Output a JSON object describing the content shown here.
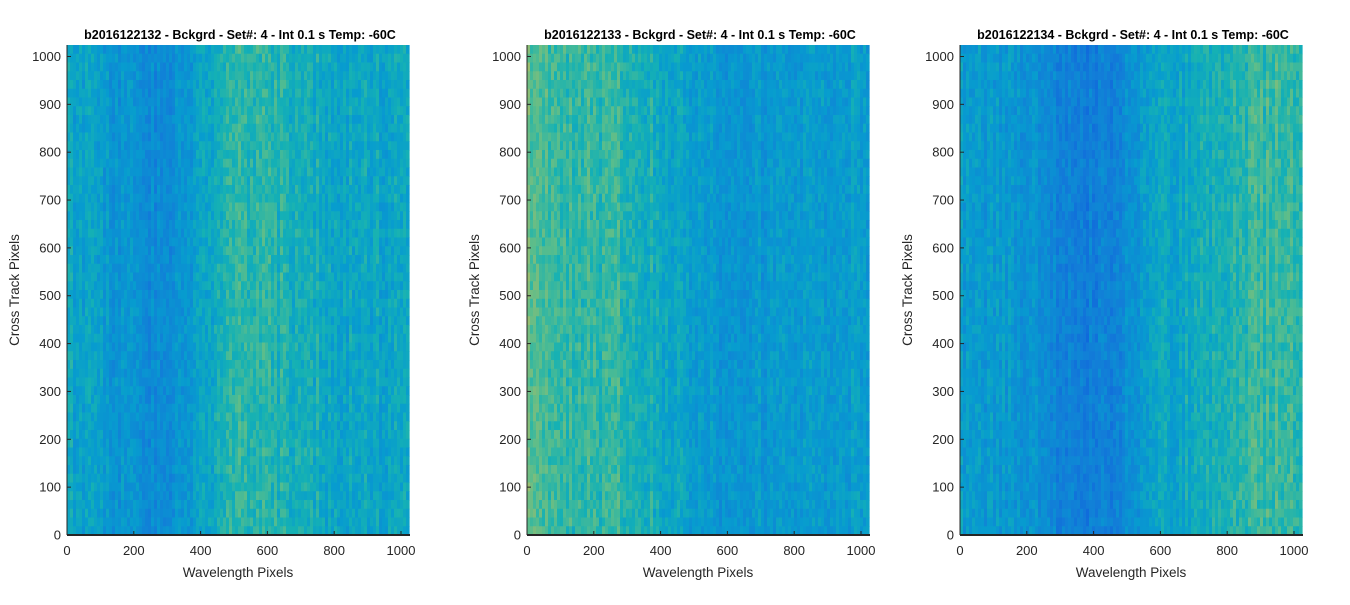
{
  "chart_data": [
    {
      "type": "heatmap",
      "title": "b2016122132 - Bckgrd - Set#: 4 - Int 0.1 s Temp: -60C",
      "xlabel": "Wavelength Pixels",
      "ylabel": "Cross Track Pixels",
      "xlim": [
        0,
        1024
      ],
      "ylim": [
        0,
        1024
      ],
      "xticks": [
        0,
        200,
        400,
        600,
        800,
        1000
      ],
      "yticks": [
        0,
        100,
        200,
        300,
        400,
        500,
        600,
        700,
        800,
        900,
        1000
      ],
      "colormap": "parula",
      "column_profile": [
        {
          "x": 0,
          "v": 0.5
        },
        {
          "x": 150,
          "v": 0.42
        },
        {
          "x": 280,
          "v": 0.36
        },
        {
          "x": 400,
          "v": 0.46
        },
        {
          "x": 500,
          "v": 0.58
        },
        {
          "x": 650,
          "v": 0.56
        },
        {
          "x": 800,
          "v": 0.5
        },
        {
          "x": 1024,
          "v": 0.48
        }
      ]
    },
    {
      "type": "heatmap",
      "title": "b2016122133 - Bckgrd - Set#: 4 - Int 0.1 s Temp: -60C",
      "xlabel": "Wavelength Pixels",
      "ylabel": "Cross Track Pixels",
      "xlim": [
        0,
        1024
      ],
      "ylim": [
        0,
        1024
      ],
      "xticks": [
        0,
        200,
        400,
        600,
        800,
        1000
      ],
      "yticks": [
        0,
        100,
        200,
        300,
        400,
        500,
        600,
        700,
        800,
        900,
        1000
      ],
      "colormap": "parula",
      "column_profile": [
        {
          "x": 0,
          "v": 0.68
        },
        {
          "x": 100,
          "v": 0.6
        },
        {
          "x": 300,
          "v": 0.58
        },
        {
          "x": 450,
          "v": 0.48
        },
        {
          "x": 600,
          "v": 0.42
        },
        {
          "x": 800,
          "v": 0.45
        },
        {
          "x": 1024,
          "v": 0.47
        }
      ]
    },
    {
      "type": "heatmap",
      "title": "b2016122134 - Bckgrd - Set#: 4 - Int 0.1 s Temp: -60C",
      "xlabel": "Wavelength Pixels",
      "ylabel": "Cross Track Pixels",
      "xlim": [
        0,
        1024
      ],
      "ylim": [
        0,
        1024
      ],
      "xticks": [
        0,
        200,
        400,
        600,
        800,
        1000
      ],
      "yticks": [
        0,
        100,
        200,
        300,
        400,
        500,
        600,
        700,
        800,
        900,
        1000
      ],
      "colormap": "parula",
      "column_profile": [
        {
          "x": 0,
          "v": 0.45
        },
        {
          "x": 200,
          "v": 0.42
        },
        {
          "x": 350,
          "v": 0.3
        },
        {
          "x": 450,
          "v": 0.32
        },
        {
          "x": 600,
          "v": 0.48
        },
        {
          "x": 800,
          "v": 0.55
        },
        {
          "x": 950,
          "v": 0.62
        },
        {
          "x": 1024,
          "v": 0.58
        }
      ]
    }
  ]
}
